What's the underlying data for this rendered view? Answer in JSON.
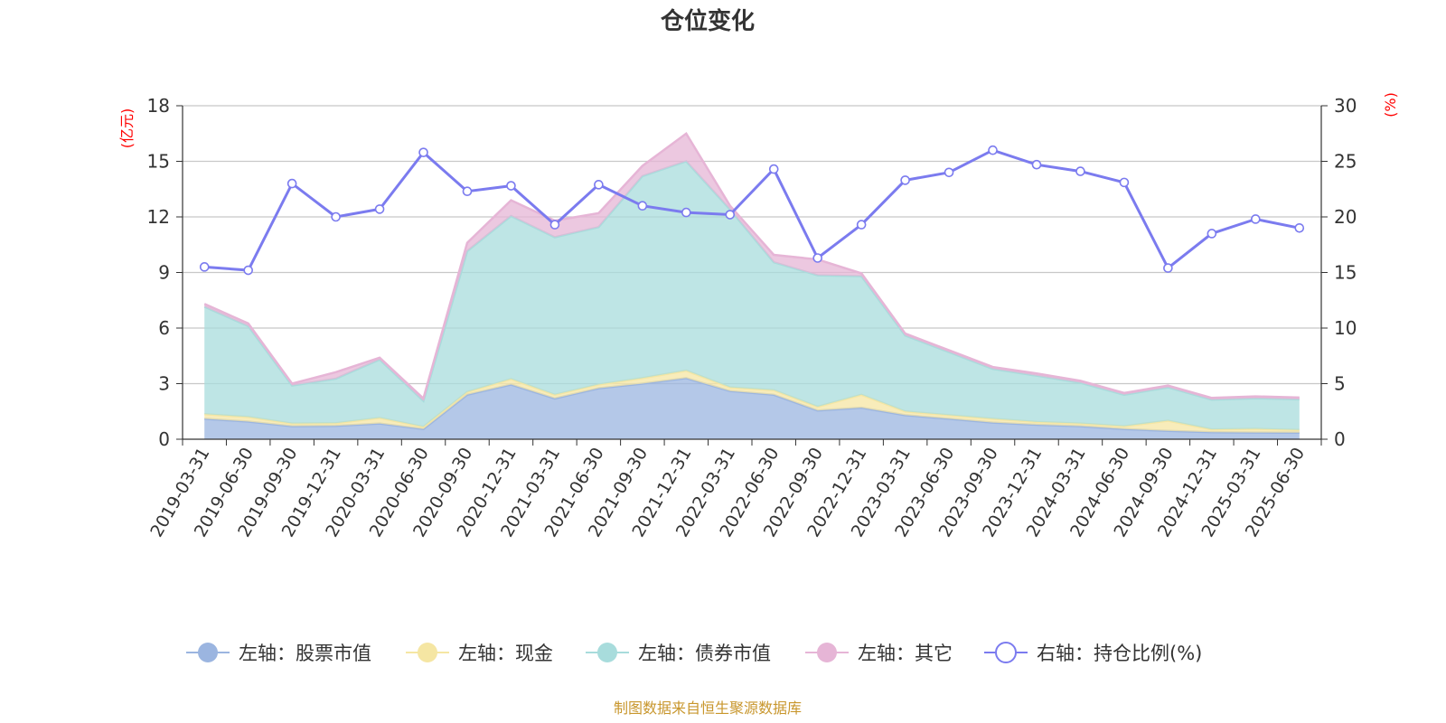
{
  "chart_data": {
    "type": "area",
    "title": "仓位变化",
    "left_unit": "(亿元)",
    "right_unit": "(%)",
    "ylim_left": [
      0,
      18
    ],
    "ylim_right": [
      0,
      30
    ],
    "left_ticks": [
      "0",
      "3",
      "6",
      "9",
      "12",
      "15",
      "18"
    ],
    "right_ticks": [
      "0",
      "5",
      "10",
      "15",
      "20",
      "25",
      "30"
    ],
    "grid": true,
    "legend_position": "bottom",
    "categories": [
      "2019-03-31",
      "2019-06-30",
      "2019-09-30",
      "2019-12-31",
      "2020-03-31",
      "2020-06-30",
      "2020-09-30",
      "2020-12-31",
      "2021-03-31",
      "2021-06-30",
      "2021-09-30",
      "2021-12-31",
      "2022-03-31",
      "2022-06-30",
      "2022-09-30",
      "2022-12-31",
      "2023-03-31",
      "2023-06-30",
      "2023-09-30",
      "2023-12-31",
      "2024-03-31",
      "2024-06-30",
      "2024-09-30",
      "2024-12-31",
      "2025-03-31",
      "2025-06-30"
    ],
    "series": [
      {
        "name": "左轴：股票市值",
        "axis": "left",
        "kind": "area",
        "color": "#9bb5e0",
        "values": [
          1.1,
          0.95,
          0.7,
          0.72,
          0.85,
          0.55,
          2.4,
          2.95,
          2.2,
          2.75,
          3.0,
          3.3,
          2.6,
          2.4,
          1.55,
          1.7,
          1.3,
          1.1,
          0.9,
          0.78,
          0.7,
          0.55,
          0.45,
          0.38,
          0.36,
          0.35
        ]
      },
      {
        "name": "左轴：现金",
        "axis": "left",
        "kind": "area",
        "color": "#f5e6a3",
        "values": [
          0.25,
          0.25,
          0.15,
          0.15,
          0.3,
          0.12,
          0.15,
          0.3,
          0.2,
          0.2,
          0.3,
          0.4,
          0.2,
          0.25,
          0.2,
          0.7,
          0.2,
          0.2,
          0.2,
          0.15,
          0.15,
          0.15,
          0.55,
          0.15,
          0.2,
          0.15
        ]
      },
      {
        "name": "左轴：债券市值",
        "axis": "left",
        "kind": "area",
        "color": "#a8dcdc",
        "values": [
          5.8,
          4.9,
          2.05,
          2.4,
          3.15,
          1.4,
          7.6,
          8.8,
          8.5,
          8.5,
          10.9,
          11.3,
          9.6,
          6.9,
          7.1,
          6.4,
          4.1,
          3.4,
          2.7,
          2.5,
          2.2,
          1.7,
          1.8,
          1.6,
          1.65,
          1.65
        ]
      },
      {
        "name": "左轴：其它",
        "axis": "left",
        "kind": "area",
        "color": "#e6b5d6",
        "values": [
          0.15,
          0.15,
          0.1,
          0.35,
          0.1,
          0.13,
          0.45,
          0.85,
          0.9,
          0.75,
          0.55,
          1.5,
          0.2,
          0.4,
          0.85,
          0.15,
          0.1,
          0.1,
          0.1,
          0.12,
          0.1,
          0.1,
          0.1,
          0.1,
          0.1,
          0.1
        ]
      },
      {
        "name": "右轴：持仓比例(%)",
        "axis": "right",
        "kind": "line",
        "color": "#7b7bef",
        "values": [
          15.5,
          15.2,
          23.0,
          20.0,
          20.7,
          25.8,
          22.3,
          22.8,
          19.3,
          22.9,
          21.0,
          20.4,
          20.2,
          24.3,
          16.3,
          19.3,
          23.3,
          24.0,
          26.0,
          24.7,
          24.1,
          23.1,
          15.4,
          18.5,
          19.8,
          19.0
        ]
      }
    ]
  },
  "footer": "制图数据来自恒生聚源数据库"
}
